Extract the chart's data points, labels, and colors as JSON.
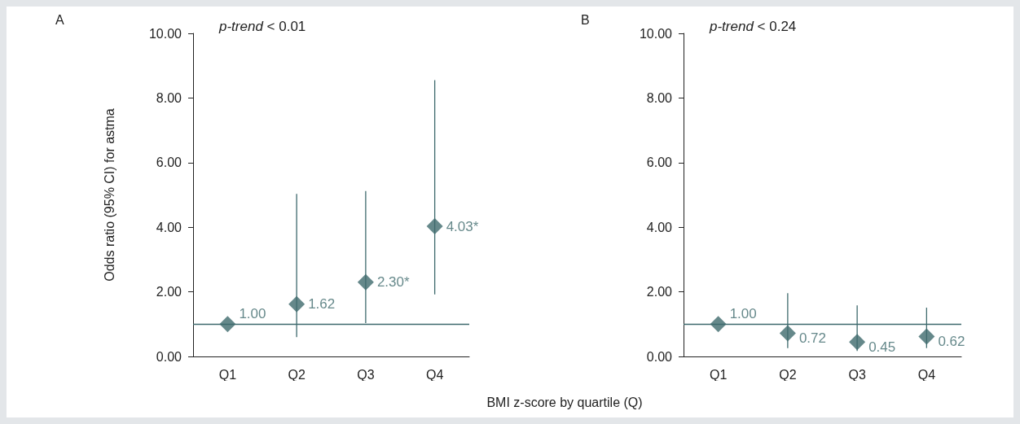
{
  "chart_data": [
    {
      "type": "scatter",
      "ylabel": "Odds ratio (95% CI) for astma",
      "xlabel": "BMI z-score by quartile (Q)",
      "categories": [
        "Q1",
        "Q2",
        "Q3",
        "Q4"
      ],
      "series": [
        {
          "color": "#3e6a6d",
          "values": [
            1.0,
            1.62,
            2.3,
            4.03
          ],
          "errors": [
            null,
            [
              0.6,
              5.03
            ],
            [
              1.03,
              5.12
            ],
            [
              1.92,
              8.55
            ]
          ],
          "value_labels": [
            "1.00",
            "1.62",
            "2.30*",
            "4.03*"
          ]
        }
      ],
      "ylim": [
        0,
        10
      ],
      "yticks": [
        {
          "value": 0,
          "label": "0.00"
        },
        {
          "value": 2,
          "label": "2.00"
        },
        {
          "value": 4,
          "label": "4.00"
        },
        {
          "value": 6,
          "label": "6.00"
        },
        {
          "value": 8,
          "label": "8.00"
        },
        {
          "value": 10,
          "label": "10.00"
        }
      ],
      "ref_lines": [
        {
          "axis": "y",
          "value": 1,
          "label": null,
          "color": "#3e6a6d"
        }
      ],
      "annotations": [
        "A",
        "p-trend < 0.01"
      ],
      "marker": "diamond",
      "grid": false
    },
    {
      "type": "scatter",
      "categories": [
        "Q1",
        "Q2",
        "Q3",
        "Q4"
      ],
      "series": [
        {
          "color": "#3e6a6d",
          "values": [
            1.0,
            0.72,
            0.45,
            0.62
          ],
          "errors": [
            null,
            [
              0.26,
              1.96
            ],
            [
              0.17,
              1.58
            ],
            [
              0.26,
              1.51
            ]
          ],
          "value_labels": [
            "1.00",
            "0.72",
            "0.45",
            "0.62"
          ]
        }
      ],
      "ylim": [
        0,
        10
      ],
      "yticks": [
        {
          "value": 0,
          "label": "0.00"
        },
        {
          "value": 2,
          "label": "2.00"
        },
        {
          "value": 4,
          "label": "4.00"
        },
        {
          "value": 6,
          "label": "6.00"
        },
        {
          "value": 8,
          "label": "8.00"
        },
        {
          "value": 10,
          "label": "10.00"
        }
      ],
      "ref_lines": [
        {
          "axis": "y",
          "value": 1,
          "label": null,
          "color": "#3e6a6d"
        }
      ],
      "annotations": [
        "B",
        "p-trend < 0.24"
      ],
      "marker": "diamond",
      "grid": false
    }
  ]
}
